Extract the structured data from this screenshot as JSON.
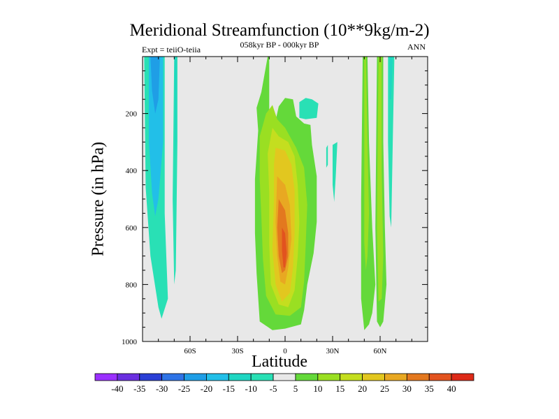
{
  "chart_data": {
    "type": "heatmap",
    "title": "Meridional Streamfunction (10**9kg/m-2)",
    "subtitle_left": "Expt = teiiO-teiia",
    "subtitle_center": "058kyr BP - 000kyr BP",
    "subtitle_right": "ANN",
    "xlabel": "Latitude",
    "ylabel": "Pressure (in hPa)",
    "x_range": [
      -90,
      90
    ],
    "y_range": [
      0,
      1000
    ],
    "y_reversed": true,
    "x_ticks": [
      {
        "value": -60,
        "label": "60S"
      },
      {
        "value": -30,
        "label": "30S"
      },
      {
        "value": 0,
        "label": "0"
      },
      {
        "value": 30,
        "label": "30N"
      },
      {
        "value": 60,
        "label": "60N"
      }
    ],
    "y_ticks": [
      200,
      400,
      600,
      800,
      1000
    ],
    "background_color": "#e8e8e8",
    "colorbar": {
      "labels": [
        "-40",
        "-35",
        "-30",
        "-25",
        "-20",
        "-15",
        "-10",
        "-5",
        "5",
        "10",
        "15",
        "20",
        "25",
        "30",
        "35",
        "40"
      ],
      "colors": [
        "#9b30ff",
        "#6a2fe0",
        "#2a3fd6",
        "#2e73e6",
        "#1f9ee6",
        "#22bfe8",
        "#1fd6c2",
        "#29e0b5",
        "#e8e8e8",
        "#64d93a",
        "#9adf22",
        "#c4de1f",
        "#e2c71f",
        "#e8a822",
        "#e3781f",
        "#e2531f",
        "#dd2a18"
      ]
    },
    "regions": [
      {
        "level": -5,
        "points": [
          [
            -89,
            0
          ],
          [
            -76,
            0
          ],
          [
            -76,
            550
          ],
          [
            -74,
            850
          ],
          [
            -78,
            920
          ],
          [
            -80,
            880
          ],
          [
            -85,
            700
          ],
          [
            -88,
            460
          ]
        ]
      },
      {
        "level": -15,
        "points": [
          [
            -86,
            0
          ],
          [
            -77,
            0
          ],
          [
            -77,
            300
          ],
          [
            -80,
            500
          ],
          [
            -82,
            560
          ],
          [
            -84,
            480
          ],
          [
            -86,
            300
          ]
        ]
      },
      {
        "level": -20,
        "points": [
          [
            -85,
            0
          ],
          [
            -79,
            0
          ],
          [
            -80,
            150
          ],
          [
            -82,
            200
          ],
          [
            -84,
            120
          ]
        ]
      },
      {
        "level": -5,
        "points": [
          [
            -70,
            0
          ],
          [
            -68,
            0
          ],
          [
            -68,
            300
          ],
          [
            -69,
            750
          ],
          [
            -70,
            800
          ],
          [
            -71,
            500
          ]
        ]
      },
      {
        "level": -10,
        "points": [
          [
            -69.8,
            0
          ],
          [
            -68.6,
            0
          ],
          [
            -68.8,
            300
          ],
          [
            -69.3,
            350
          ],
          [
            -69.6,
            200
          ]
        ]
      },
      {
        "level": 5,
        "points": [
          [
            -11,
            0
          ],
          [
            -10,
            0
          ],
          [
            -10,
            200
          ],
          [
            -6,
            225
          ],
          [
            -4,
            175
          ],
          [
            0,
            145
          ],
          [
            5,
            150
          ],
          [
            7,
            210
          ],
          [
            12,
            235
          ],
          [
            16,
            240
          ],
          [
            17,
            310
          ],
          [
            20,
            420
          ],
          [
            20,
            580
          ],
          [
            18,
            690
          ],
          [
            14,
            800
          ],
          [
            12,
            890
          ],
          [
            10,
            940
          ],
          [
            0,
            955
          ],
          [
            -8,
            960
          ],
          [
            -16,
            930
          ],
          [
            -18,
            760
          ],
          [
            -19,
            620
          ],
          [
            -19,
            430
          ],
          [
            -17,
            260
          ],
          [
            -18,
            180
          ],
          [
            -15,
            125
          ]
        ]
      },
      {
        "level": 10,
        "points": [
          [
            -12,
            200
          ],
          [
            -8,
            170
          ],
          [
            -5,
            220
          ],
          [
            0,
            250
          ],
          [
            7,
            320
          ],
          [
            12,
            390
          ],
          [
            14,
            520
          ],
          [
            13,
            660
          ],
          [
            12,
            790
          ],
          [
            10,
            880
          ],
          [
            3,
            910
          ],
          [
            -6,
            905
          ],
          [
            -12,
            840
          ],
          [
            -14,
            710
          ],
          [
            -15,
            560
          ],
          [
            -16,
            430
          ],
          [
            -16,
            280
          ]
        ]
      },
      {
        "level": 15,
        "points": [
          [
            -8,
            250
          ],
          [
            -4,
            280
          ],
          [
            2,
            300
          ],
          [
            6,
            350
          ],
          [
            8,
            450
          ],
          [
            9,
            580
          ],
          [
            8,
            700
          ],
          [
            6,
            820
          ],
          [
            2,
            880
          ],
          [
            -4,
            870
          ],
          [
            -9,
            800
          ],
          [
            -10,
            660
          ],
          [
            -10,
            480
          ],
          [
            -11,
            340
          ]
        ]
      },
      {
        "level": 20,
        "points": [
          [
            -6,
            320
          ],
          [
            0,
            330
          ],
          [
            4,
            380
          ],
          [
            6,
            470
          ],
          [
            6,
            620
          ],
          [
            5,
            740
          ],
          [
            3,
            830
          ],
          [
            -2,
            860
          ],
          [
            -6,
            800
          ],
          [
            -8,
            680
          ],
          [
            -7,
            500
          ],
          [
            -7,
            380
          ]
        ]
      },
      {
        "level": 25,
        "points": [
          [
            -5,
            420
          ],
          [
            0,
            450
          ],
          [
            3,
            520
          ],
          [
            4,
            640
          ],
          [
            2,
            740
          ],
          [
            0,
            800
          ],
          [
            -3,
            790
          ],
          [
            -5,
            700
          ],
          [
            -6,
            580
          ]
        ]
      },
      {
        "level": 30,
        "points": [
          [
            -4,
            500
          ],
          [
            0,
            540
          ],
          [
            2,
            620
          ],
          [
            2,
            700
          ],
          [
            0,
            750
          ],
          [
            -2,
            760
          ],
          [
            -4,
            700
          ],
          [
            -5,
            600
          ]
        ]
      },
      {
        "level": 35,
        "points": [
          [
            -2,
            600
          ],
          [
            0,
            620
          ],
          [
            1,
            690
          ],
          [
            0,
            740
          ],
          [
            -1,
            740
          ],
          [
            -2,
            680
          ]
        ]
      },
      {
        "level": -5,
        "points": [
          [
            9,
            160
          ],
          [
            13,
            145
          ],
          [
            17,
            150
          ],
          [
            21,
            165
          ],
          [
            20,
            215
          ],
          [
            13,
            220
          ],
          [
            9,
            215
          ]
        ]
      },
      {
        "level": -5,
        "points": [
          [
            30,
            310
          ],
          [
            33,
            300
          ],
          [
            32,
            420
          ],
          [
            31,
            510
          ],
          [
            30,
            450
          ]
        ]
      },
      {
        "level": -5,
        "points": [
          [
            26,
            320
          ],
          [
            27,
            310
          ],
          [
            27,
            380
          ],
          [
            26,
            390
          ]
        ]
      },
      {
        "level": 5,
        "points": [
          [
            49,
            0
          ],
          [
            52,
            0
          ],
          [
            53,
            300
          ],
          [
            55,
            600
          ],
          [
            57,
            800
          ],
          [
            55,
            900
          ],
          [
            53,
            940
          ],
          [
            50,
            960
          ],
          [
            48,
            850
          ],
          [
            48,
            500
          ]
        ]
      },
      {
        "level": 10,
        "points": [
          [
            50,
            0
          ],
          [
            51,
            0
          ],
          [
            52,
            300
          ],
          [
            53,
            550
          ],
          [
            52,
            700
          ],
          [
            51,
            750
          ],
          [
            50,
            650
          ]
        ]
      },
      {
        "level": 5,
        "points": [
          [
            58,
            0
          ],
          [
            62,
            0
          ],
          [
            62,
            300
          ],
          [
            63,
            600
          ],
          [
            64,
            800
          ],
          [
            62,
            930
          ],
          [
            60,
            950
          ],
          [
            58,
            930
          ],
          [
            57,
            600
          ]
        ]
      },
      {
        "level": 10,
        "points": [
          [
            59,
            0
          ],
          [
            61,
            0
          ],
          [
            61,
            400
          ],
          [
            62,
            700
          ],
          [
            61,
            850
          ],
          [
            59,
            860
          ],
          [
            58,
            600
          ]
        ]
      },
      {
        "level": -5,
        "points": [
          [
            65,
            0
          ],
          [
            69,
            0
          ],
          [
            68,
            300
          ],
          [
            67,
            600
          ],
          [
            66,
            560
          ],
          [
            65,
            300
          ]
        ]
      },
      {
        "level": -10,
        "points": [
          [
            66,
            0
          ],
          [
            68,
            0
          ],
          [
            67,
            150
          ],
          [
            66,
            150
          ]
        ]
      }
    ]
  }
}
